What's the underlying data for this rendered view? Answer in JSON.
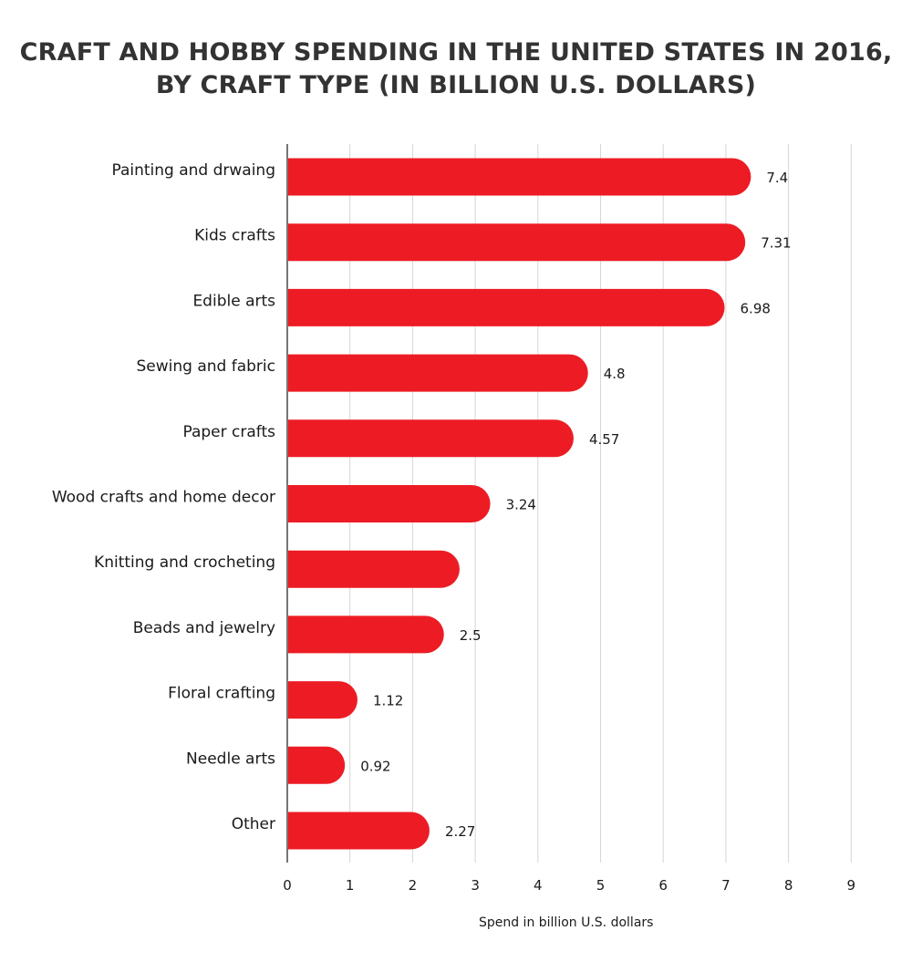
{
  "chart_data": {
    "type": "bar",
    "orientation": "horizontal",
    "title_lines": [
      "CRAFT AND HOBBY SPENDING IN THE UNITED STATES IN 2016,",
      "BY CRAFT TYPE (IN BILLION U.S. DOLLARS)"
    ],
    "categories": [
      "Painting and drwaing",
      "Kids crafts",
      "Edible arts",
      "Sewing and fabric",
      "Paper crafts",
      "Wood crafts and home decor",
      "Knitting and crocheting",
      "Beads and jewelry",
      "Floral crafting",
      "Needle arts",
      "Other"
    ],
    "values": [
      7.4,
      7.31,
      6.98,
      4.8,
      4.57,
      3.24,
      2.75,
      2.5,
      1.12,
      0.92,
      2.27
    ],
    "value_labels": [
      "7.4",
      "7.31",
      "6.98",
      "4.8",
      "4.57",
      "3.24",
      "",
      "2.5",
      "1.12",
      "0.92",
      "2.27"
    ],
    "xlabel": "Spend in billion U.S. dollars",
    "xlim": [
      0,
      9
    ],
    "x_ticks": [
      "0",
      "1",
      "2",
      "3",
      "4",
      "5",
      "6",
      "7",
      "8",
      "9"
    ],
    "grid": "vertical",
    "bar_color": "#ed1c24"
  }
}
